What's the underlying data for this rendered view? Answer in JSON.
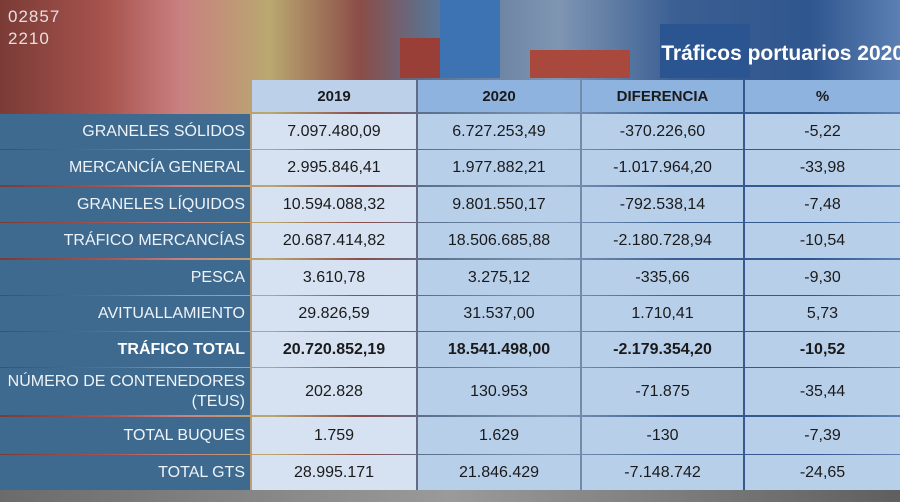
{
  "title": "Tráficos portuarios 2020",
  "background_text": [
    "02857",
    "2210"
  ],
  "headers": [
    "2019",
    "2020",
    "DIFERENCIA",
    "%"
  ],
  "rows": [
    {
      "label": "GRANELES SÓLIDOS",
      "v": [
        "7.097.480,09",
        "6.727.253,49",
        "-370.226,60",
        "-5,22"
      ]
    },
    {
      "label": "MERCANCÍA GENERAL",
      "v": [
        "2.995.846,41",
        "1.977.882,21",
        "-1.017.964,20",
        "-33,98"
      ]
    },
    {
      "label": "GRANELES LÍQUIDOS",
      "v": [
        "10.594.088,32",
        "9.801.550,17",
        "-792.538,14",
        "-7,48"
      ]
    },
    {
      "label": "TRÁFICO MERCANCÍAS",
      "v": [
        "20.687.414,82",
        "18.506.685,88",
        "-2.180.728,94",
        "-10,54"
      ]
    },
    {
      "label": "PESCA",
      "v": [
        "3.610,78",
        "3.275,12",
        "-335,66",
        "-9,30"
      ]
    },
    {
      "label": "AVITUALLAMIENTO",
      "v": [
        "29.826,59",
        "31.537,00",
        "1.710,41",
        "5,73"
      ]
    },
    {
      "label": "TRÁFICO TOTAL",
      "bold": true,
      "v": [
        "20.720.852,19",
        "18.541.498,00",
        "-2.179.354,20",
        "-10,52"
      ]
    },
    {
      "label": "NÚMERO DE CONTENEDORES (TEUS)",
      "v": [
        "202.828",
        "130.953",
        "-71.875",
        "-35,44"
      ]
    },
    {
      "label": "TOTAL BUQUES",
      "v": [
        "1.759",
        "1.629",
        "-130",
        "-7,39"
      ]
    },
    {
      "label": "TOTAL GTS",
      "v": [
        "28.995.171",
        "21.846.429",
        "-7.148.742",
        "-24,65"
      ]
    }
  ],
  "colors": {
    "label_bg": "#3f6a8f",
    "col2019": "#d6e2f2",
    "col2020": "#b8cfea",
    "header2019": "#bcd0ea",
    "header2020": "#8fb3df"
  }
}
